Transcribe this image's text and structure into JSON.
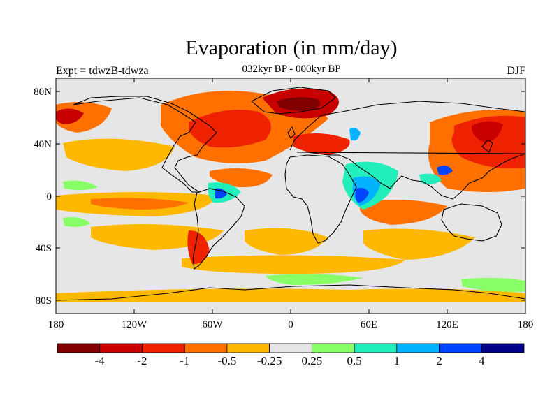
{
  "header": {
    "title": "Evaporation (in mm/day)",
    "subtitle": "032kyr BP - 000kyr BP",
    "experiment": "Expt = tdwzB-tdwza",
    "season": "DJF"
  },
  "map": {
    "projection": "equirectangular",
    "lon_range": [
      -180,
      180
    ],
    "lat_range": [
      -90,
      90
    ],
    "lat_tick_labels": [
      "80N",
      "40N",
      "0",
      "40S",
      "80S"
    ],
    "lon_tick_labels": [
      "180",
      "120W",
      "60W",
      "0",
      "60E",
      "120E",
      "180"
    ],
    "background_color": "#e6e6e6",
    "coastline_color": "#000000"
  },
  "colorbar": {
    "colors": [
      "#800000",
      "#c80000",
      "#ee2200",
      "#ff7000",
      "#ffb800",
      "#e6e6e6",
      "#88ff66",
      "#22eebb",
      "#00b2ff",
      "#0044ff",
      "#000088"
    ],
    "labels": [
      "-4",
      "-2",
      "-1",
      "-0.5",
      "-0.25",
      "0.25",
      "0.5",
      "1",
      "2",
      "4"
    ]
  }
}
